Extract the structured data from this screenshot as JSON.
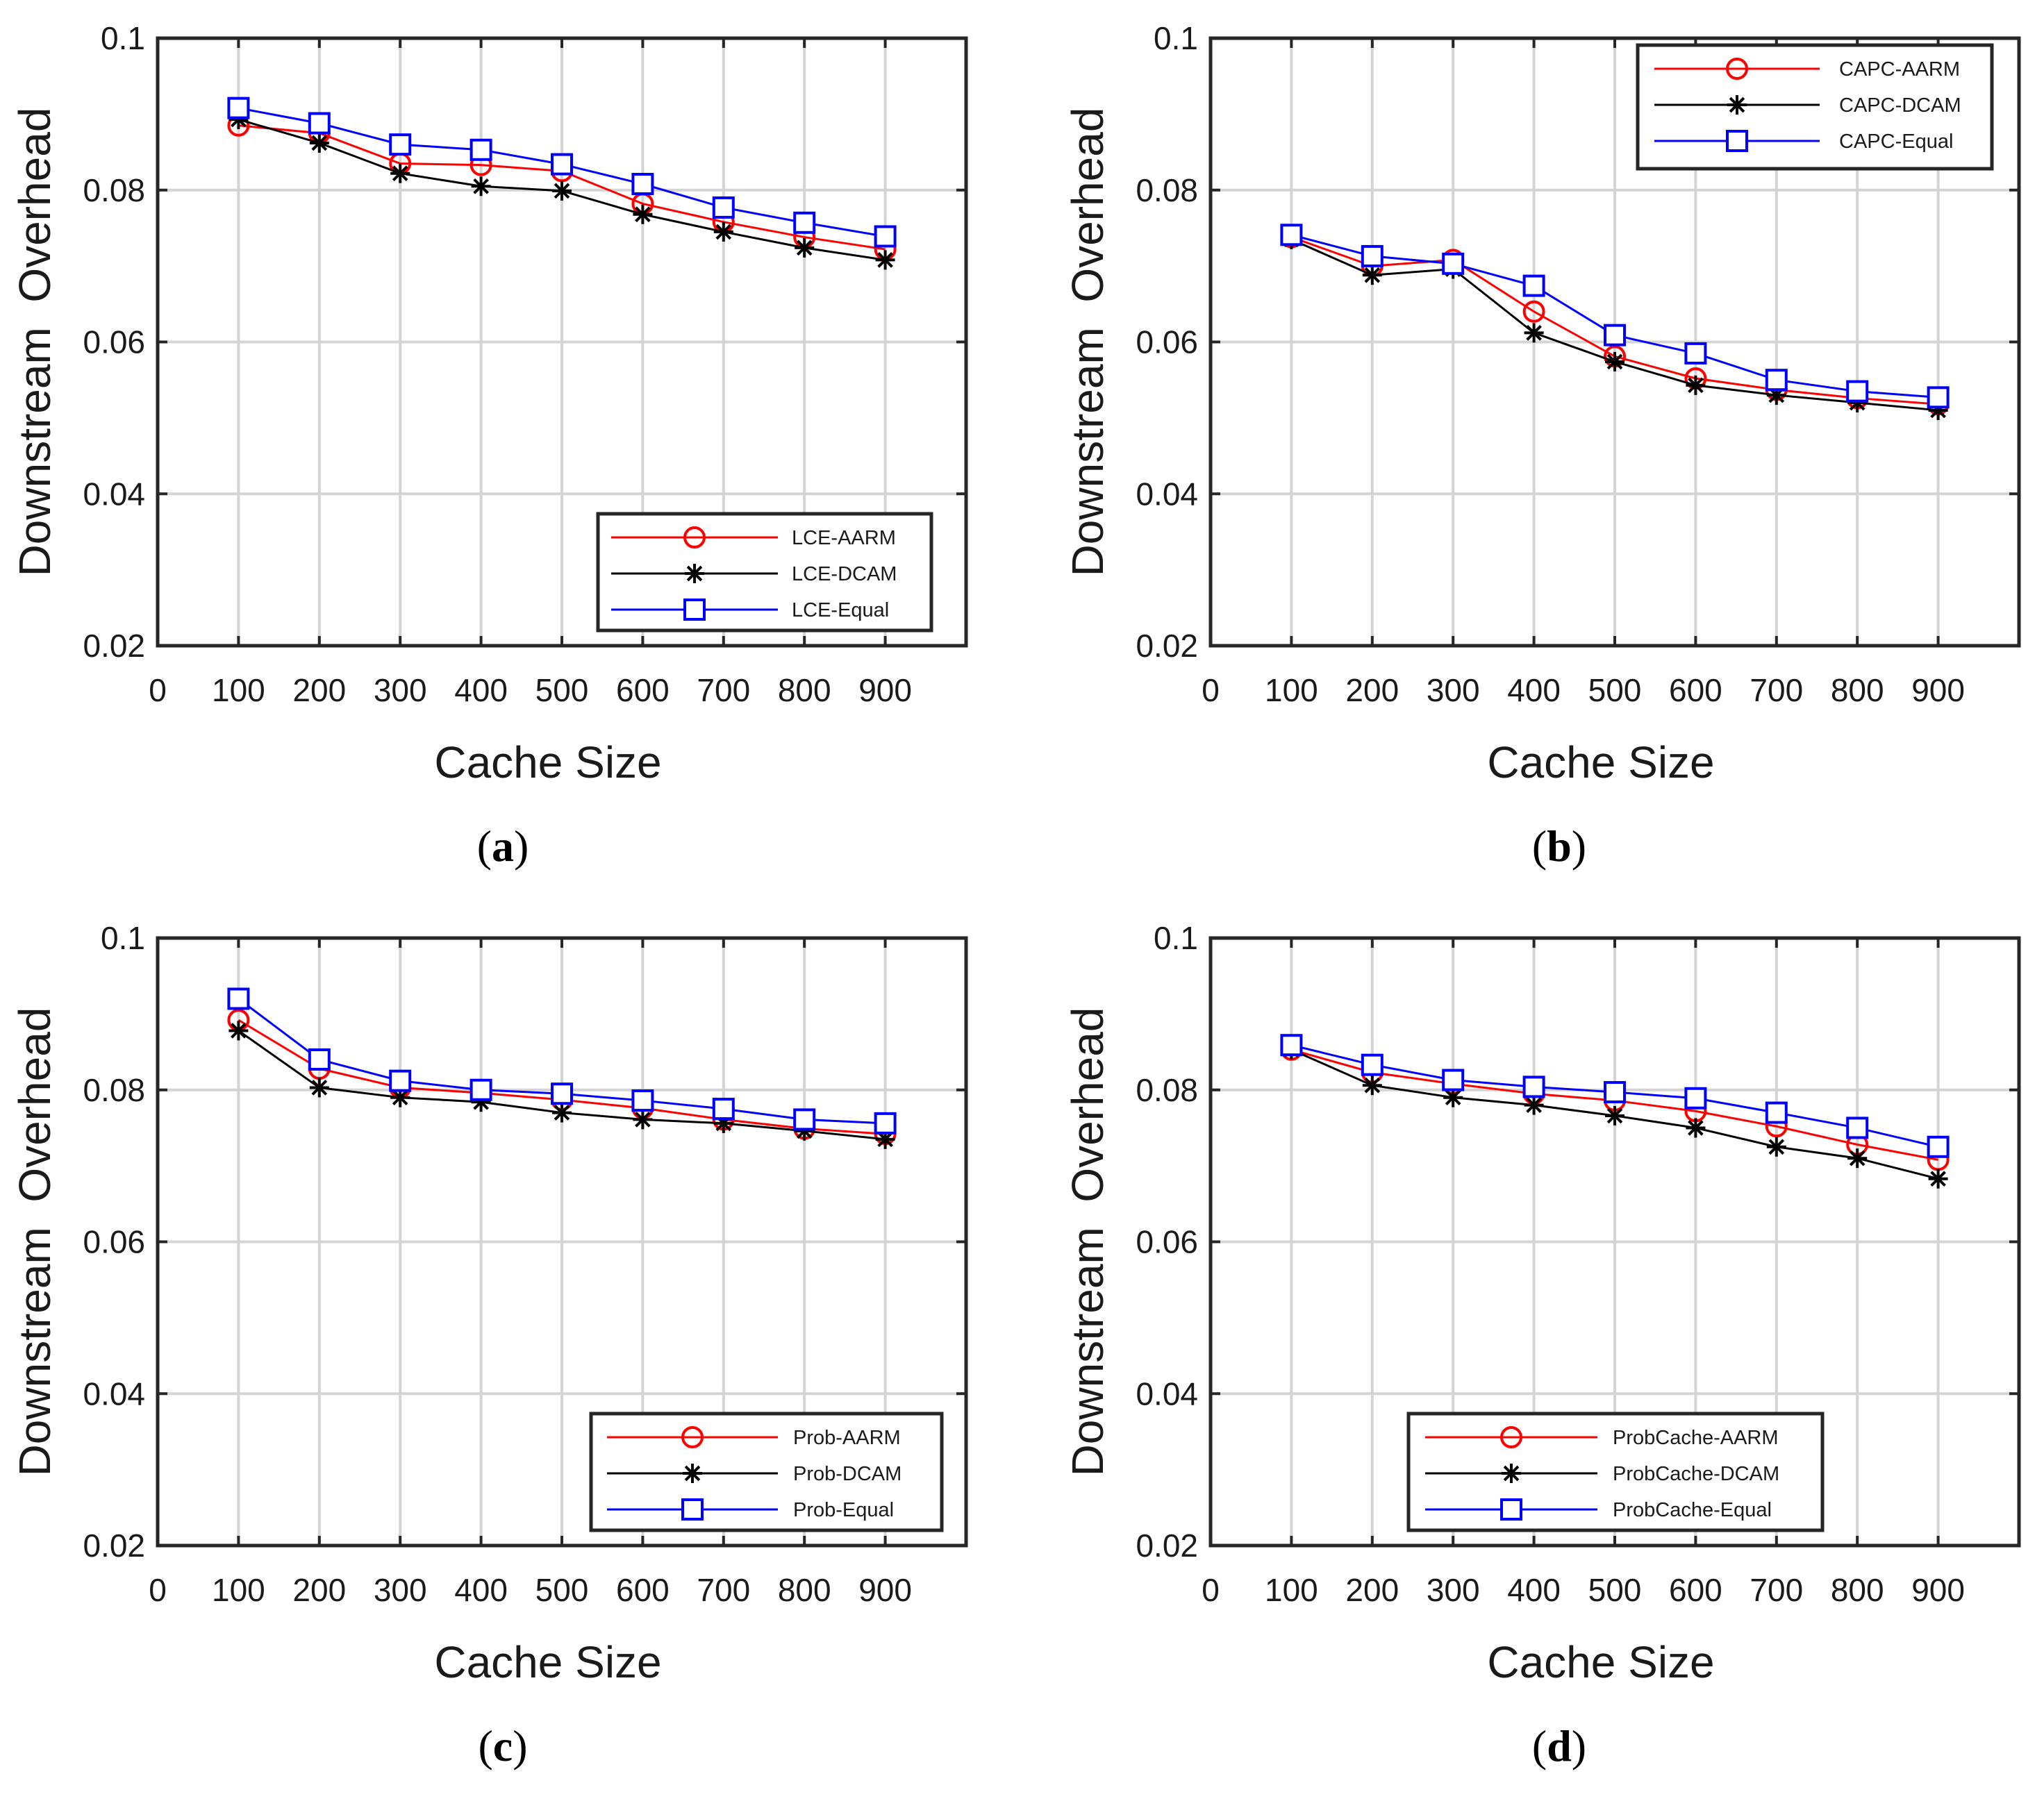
{
  "chart_data": [
    {
      "type": "line",
      "panel_label": "a",
      "xlabel": "Cache Size",
      "ylabel": "Downstream  Overhead",
      "xlim": [
        0,
        1000
      ],
      "ylim": [
        0.02,
        0.1
      ],
      "x_ticks": [
        "0",
        "100",
        "200",
        "300",
        "400",
        "500",
        "600",
        "700",
        "800",
        "900"
      ],
      "y_ticks": [
        "0.02",
        "0.04",
        "0.06",
        "0.08",
        "0.1"
      ],
      "grid": true,
      "legend_position": "bottom-right",
      "x": [
        100,
        200,
        300,
        400,
        500,
        600,
        700,
        800,
        900
      ],
      "series": [
        {
          "name": "LCE-AARM",
          "color": "#ff0000",
          "marker": "circle",
          "values": [
            0.0885,
            0.0875,
            0.0835,
            0.0833,
            0.0825,
            0.0782,
            0.0758,
            0.0738,
            0.0722
          ]
        },
        {
          "name": "LCE-DCAM",
          "color": "#000000",
          "marker": "star",
          "values": [
            0.0893,
            0.0862,
            0.0822,
            0.0805,
            0.0799,
            0.0768,
            0.0745,
            0.0724,
            0.0708
          ]
        },
        {
          "name": "LCE-Equal",
          "color": "#0000ff",
          "marker": "square",
          "values": [
            0.0908,
            0.0888,
            0.086,
            0.0853,
            0.0834,
            0.0808,
            0.0777,
            0.0757,
            0.0739
          ]
        }
      ]
    },
    {
      "type": "line",
      "panel_label": "b",
      "xlabel": "Cache Size",
      "ylabel": "Downstream  Overhead",
      "xlim": [
        0,
        1000
      ],
      "ylim": [
        0.02,
        0.1
      ],
      "x_ticks": [
        "0",
        "100",
        "200",
        "300",
        "400",
        "500",
        "600",
        "700",
        "800",
        "900"
      ],
      "y_ticks": [
        "0.02",
        "0.04",
        "0.06",
        "0.08",
        "0.1"
      ],
      "grid": true,
      "legend_position": "top-right",
      "x": [
        100,
        200,
        300,
        400,
        500,
        600,
        700,
        800,
        900
      ],
      "series": [
        {
          "name": "CAPC-AARM",
          "color": "#ff0000",
          "marker": "circle",
          "values": [
            0.0738,
            0.07,
            0.0708,
            0.064,
            0.0581,
            0.0552,
            0.0537,
            0.0526,
            0.0518
          ]
        },
        {
          "name": "CAPC-DCAM",
          "color": "#000000",
          "marker": "star",
          "values": [
            0.0735,
            0.0688,
            0.0696,
            0.0612,
            0.0574,
            0.0543,
            0.053,
            0.052,
            0.051
          ]
        },
        {
          "name": "CAPC-Equal",
          "color": "#0000ff",
          "marker": "square",
          "values": [
            0.0741,
            0.0713,
            0.0703,
            0.0674,
            0.0609,
            0.0585,
            0.055,
            0.0535,
            0.0527
          ]
        }
      ]
    },
    {
      "type": "line",
      "panel_label": "c",
      "xlabel": "Cache Size",
      "ylabel": "Downstream  Overhead",
      "xlim": [
        0,
        1000
      ],
      "ylim": [
        0.02,
        0.1
      ],
      "x_ticks": [
        "0",
        "100",
        "200",
        "300",
        "400",
        "500",
        "600",
        "700",
        "800",
        "900"
      ],
      "y_ticks": [
        "0.02",
        "0.04",
        "0.06",
        "0.08",
        "0.1"
      ],
      "grid": true,
      "legend_position": "bottom-right",
      "x": [
        100,
        200,
        300,
        400,
        500,
        600,
        700,
        800,
        900
      ],
      "series": [
        {
          "name": "Prob-AARM",
          "color": "#ff0000",
          "marker": "circle",
          "values": [
            0.0892,
            0.0828,
            0.0803,
            0.0796,
            0.0787,
            0.0776,
            0.0761,
            0.0749,
            0.0742
          ]
        },
        {
          "name": "Prob-DCAM",
          "color": "#000000",
          "marker": "star",
          "values": [
            0.0878,
            0.0803,
            0.079,
            0.0784,
            0.077,
            0.0761,
            0.0756,
            0.0746,
            0.0735
          ]
        },
        {
          "name": "Prob-Equal",
          "color": "#0000ff",
          "marker": "square",
          "values": [
            0.092,
            0.084,
            0.0812,
            0.08,
            0.0795,
            0.0786,
            0.0775,
            0.0761,
            0.0756
          ]
        }
      ]
    },
    {
      "type": "line",
      "panel_label": "d",
      "xlabel": "Cache Size",
      "ylabel": "Downstream  Overhead",
      "xlim": [
        0,
        1000
      ],
      "ylim": [
        0.02,
        0.1
      ],
      "x_ticks": [
        "0",
        "100",
        "200",
        "300",
        "400",
        "500",
        "600",
        "700",
        "800",
        "900"
      ],
      "y_ticks": [
        "0.02",
        "0.04",
        "0.06",
        "0.08",
        "0.1"
      ],
      "grid": true,
      "legend_position": "bottom-center",
      "x": [
        100,
        200,
        300,
        400,
        500,
        600,
        700,
        800,
        900
      ],
      "series": [
        {
          "name": "ProbCache-AARM",
          "color": "#ff0000",
          "marker": "circle",
          "values": [
            0.0853,
            0.0823,
            0.0808,
            0.0795,
            0.0786,
            0.0772,
            0.0752,
            0.0728,
            0.0708
          ]
        },
        {
          "name": "ProbCache-DCAM",
          "color": "#000000",
          "marker": "star",
          "values": [
            0.0853,
            0.0806,
            0.079,
            0.078,
            0.0766,
            0.075,
            0.0725,
            0.071,
            0.0683
          ]
        },
        {
          "name": "ProbCache-Equal",
          "color": "#0000ff",
          "marker": "square",
          "values": [
            0.0859,
            0.0833,
            0.0813,
            0.0804,
            0.0797,
            0.0789,
            0.077,
            0.075,
            0.0725
          ]
        }
      ]
    }
  ]
}
